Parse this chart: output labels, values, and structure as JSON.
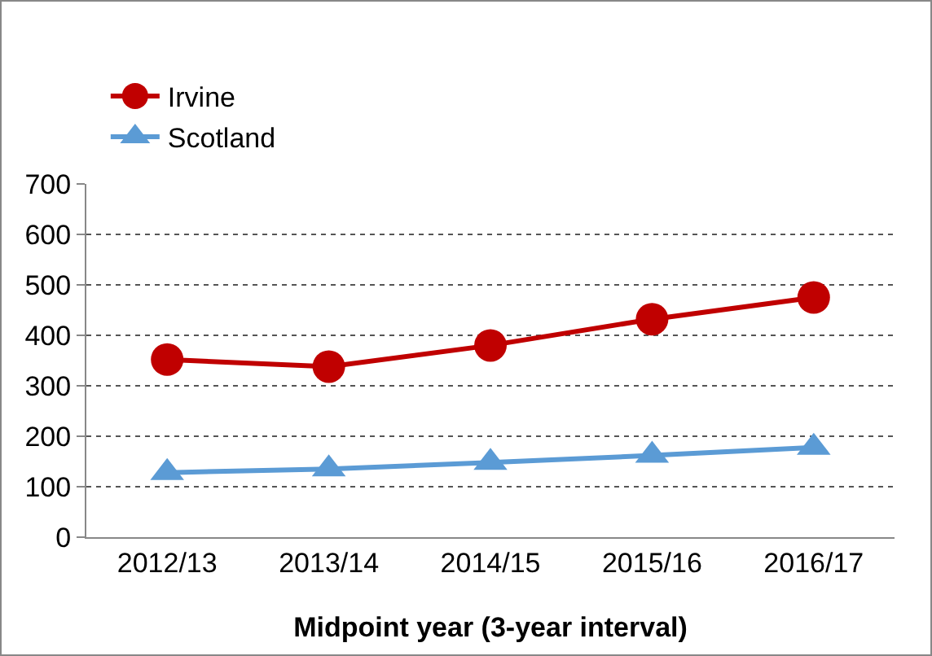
{
  "chart_data": {
    "type": "line",
    "xlabel": "Midpoint year (3-year interval)",
    "categories": [
      "2012/13",
      "2013/14",
      "2014/15",
      "2015/16",
      "2016/17"
    ],
    "series": [
      {
        "name": "Irvine",
        "color": "#c00000",
        "marker": "circle",
        "values": [
          352,
          338,
          380,
          432,
          475
        ]
      },
      {
        "name": "Scotland",
        "color": "#5b9bd5",
        "marker": "triangle",
        "values": [
          128,
          135,
          148,
          162,
          178
        ]
      }
    ],
    "ylim": [
      0,
      700
    ],
    "yticks": [
      0,
      100,
      200,
      300,
      400,
      500,
      600,
      700
    ],
    "grid": "y",
    "legend": "top left"
  }
}
